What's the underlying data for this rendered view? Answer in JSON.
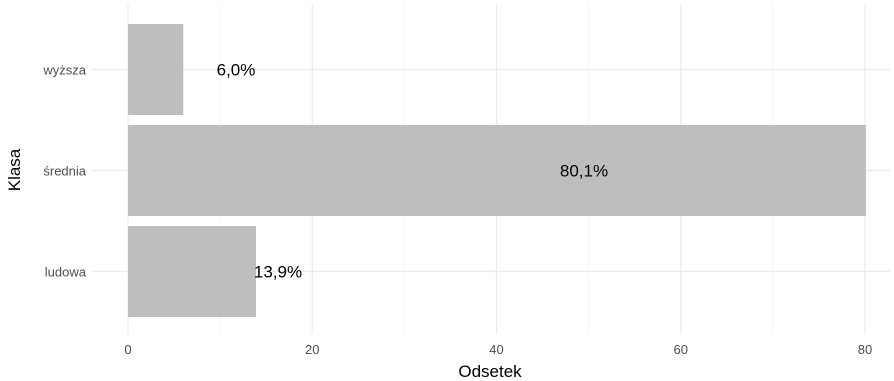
{
  "chart_data": {
    "type": "bar",
    "orientation": "horizontal",
    "categories": [
      "wyższa",
      "średnia",
      "ludowa"
    ],
    "values": [
      6.0,
      80.1,
      13.9
    ],
    "data_labels": [
      "6,0%",
      "80,1%",
      "13,9%"
    ],
    "xticks": [
      0,
      20,
      40,
      60,
      80
    ],
    "xlabel": "Odsetek",
    "ylabel": "Klasa",
    "xlim": [
      0,
      80
    ],
    "grid": true,
    "legend": "none",
    "colors": {
      "bar": "#bebebe",
      "grid_major": "#ebebeb",
      "grid_minor": "#f4f4f4"
    }
  }
}
